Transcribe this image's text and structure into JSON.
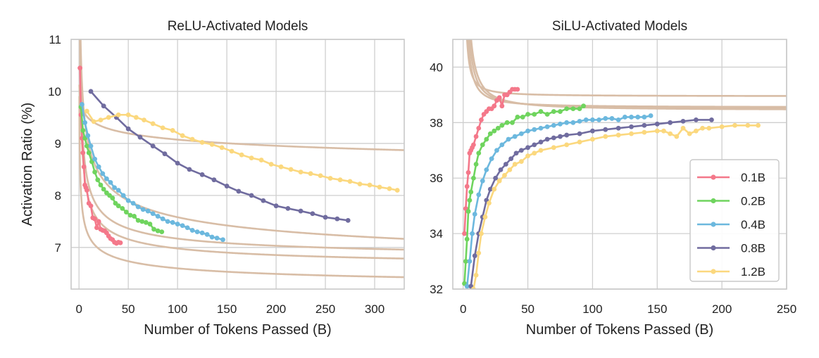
{
  "chart_data": [
    {
      "type": "line",
      "title": "ReLU-Activated Models",
      "xlabel": "Number of Tokens Passed (B)",
      "ylabel": "Activation Ratio (%)",
      "xlim": [
        -8,
        330
      ],
      "ylim": [
        6.2,
        11
      ],
      "xticks": [
        0,
        50,
        100,
        150,
        200,
        250,
        300
      ],
      "yticks": [
        7,
        8,
        9,
        10,
        11
      ],
      "grid": true,
      "series": [
        {
          "name": "0.1B",
          "x": [
            1,
            2,
            3,
            4,
            5,
            6,
            7,
            8,
            10,
            12,
            14,
            16,
            18,
            20,
            22,
            24,
            26,
            28,
            30,
            32,
            34,
            36,
            38,
            40,
            42
          ],
          "y": [
            10.45,
            9.55,
            9.1,
            8.82,
            8.55,
            8.2,
            8.15,
            8.1,
            7.85,
            7.8,
            7.57,
            7.55,
            7.38,
            7.5,
            7.35,
            7.33,
            7.32,
            7.28,
            7.22,
            7.17,
            7.15,
            7.1,
            7.08,
            7.1,
            7.09
          ]
        },
        {
          "name": "0.2B",
          "x": [
            2,
            4,
            6,
            8,
            10,
            13,
            16,
            19,
            22,
            25,
            28,
            31,
            34,
            37,
            40,
            44,
            48,
            52,
            56,
            60,
            64,
            68,
            72,
            76,
            80,
            84
          ],
          "y": [
            9.7,
            9.25,
            9.1,
            8.95,
            8.82,
            8.65,
            8.45,
            8.3,
            8.2,
            8.12,
            8.05,
            8.0,
            7.95,
            7.85,
            7.8,
            7.75,
            7.68,
            7.62,
            7.6,
            7.52,
            7.5,
            7.48,
            7.45,
            7.35,
            7.32,
            7.3
          ]
        },
        {
          "name": "0.4B",
          "x": [
            3,
            6,
            9,
            12,
            16,
            20,
            24,
            28,
            32,
            36,
            40,
            45,
            50,
            55,
            60,
            65,
            70,
            75,
            80,
            85,
            90,
            95,
            100,
            105,
            110,
            115,
            120,
            125,
            130,
            135,
            140,
            146
          ],
          "y": [
            9.75,
            9.4,
            9.15,
            8.95,
            8.7,
            8.55,
            8.42,
            8.32,
            8.25,
            8.15,
            8.1,
            8.0,
            7.9,
            7.85,
            7.78,
            7.73,
            7.7,
            7.65,
            7.6,
            7.55,
            7.5,
            7.48,
            7.45,
            7.42,
            7.38,
            7.33,
            7.3,
            7.28,
            7.25,
            7.2,
            7.18,
            7.15
          ]
        },
        {
          "name": "0.8B",
          "x": [
            12,
            25,
            38,
            50,
            62,
            75,
            87,
            100,
            112,
            125,
            137,
            150,
            162,
            175,
            187,
            200,
            212,
            225,
            237,
            250,
            262,
            273
          ],
          "y": [
            10.0,
            9.72,
            9.5,
            9.28,
            9.12,
            8.95,
            8.8,
            8.62,
            8.5,
            8.4,
            8.3,
            8.18,
            8.08,
            8.0,
            7.9,
            7.8,
            7.75,
            7.7,
            7.65,
            7.58,
            7.55,
            7.52
          ]
        },
        {
          "name": "1.2B",
          "x": [
            8,
            15,
            22,
            30,
            40,
            50,
            58,
            66,
            75,
            85,
            95,
            105,
            115,
            125,
            135,
            145,
            155,
            165,
            175,
            185,
            195,
            205,
            215,
            225,
            235,
            245,
            255,
            265,
            275,
            285,
            295,
            305,
            315,
            323
          ],
          "y": [
            9.62,
            9.42,
            9.45,
            9.5,
            9.55,
            9.55,
            9.5,
            9.45,
            9.38,
            9.3,
            9.25,
            9.15,
            9.08,
            9.02,
            8.98,
            8.92,
            8.85,
            8.78,
            8.72,
            8.68,
            8.6,
            8.55,
            8.5,
            8.45,
            8.42,
            8.38,
            8.33,
            8.3,
            8.27,
            8.22,
            8.2,
            8.16,
            8.13,
            8.1
          ]
        }
      ],
      "fits": [
        {
          "a": 6.1,
          "b": 2.5,
          "p": 0.35
        },
        {
          "a": 6.55,
          "b": 4.3,
          "p": 0.5
        },
        {
          "a": 6.7,
          "b": 4.7,
          "p": 0.5
        },
        {
          "a": 6.2,
          "b": 5.5,
          "p": 0.3
        },
        {
          "a": 0.5,
          "b": 9.4,
          "p": 0.02
        }
      ]
    },
    {
      "type": "line",
      "title": "SiLU-Activated Models",
      "xlabel": "Number of Tokens Passed (B)",
      "ylabel": "",
      "xlim": [
        -8,
        250
      ],
      "ylim": [
        32,
        41
      ],
      "xticks": [
        0,
        50,
        100,
        150,
        200,
        250
      ],
      "yticks": [
        32,
        34,
        36,
        38,
        40
      ],
      "grid": true,
      "legend_position": "lower right",
      "series": [
        {
          "name": "0.1B",
          "x": [
            1,
            2,
            3,
            4,
            5,
            6,
            7,
            8,
            10,
            12,
            14,
            16,
            18,
            20,
            22,
            24,
            26,
            28,
            30,
            32,
            34,
            36,
            38,
            40,
            42
          ],
          "y": [
            34.0,
            34.9,
            35.7,
            36.2,
            36.9,
            37.0,
            37.1,
            37.2,
            37.5,
            37.8,
            38.1,
            38.3,
            38.4,
            38.5,
            38.5,
            38.6,
            38.8,
            38.9,
            38.6,
            39.0,
            39.0,
            39.1,
            39.2,
            39.2,
            39.2
          ]
        },
        {
          "name": "0.2B",
          "x": [
            1,
            2,
            3,
            4,
            5,
            6,
            8,
            10,
            12,
            15,
            18,
            21,
            24,
            27,
            30,
            34,
            38,
            42,
            46,
            50,
            55,
            60,
            65,
            70,
            75,
            80,
            85,
            90,
            93
          ],
          "y": [
            32.2,
            33.0,
            33.8,
            34.8,
            35.2,
            35.5,
            36.0,
            36.5,
            36.9,
            37.2,
            37.4,
            37.6,
            37.7,
            37.8,
            37.9,
            38.0,
            38.0,
            38.2,
            38.2,
            38.3,
            38.3,
            38.4,
            38.3,
            38.4,
            38.4,
            38.5,
            38.5,
            38.5,
            38.6
          ]
        },
        {
          "name": "0.4B",
          "x": [
            3,
            5,
            7,
            9,
            12,
            15,
            18,
            22,
            26,
            30,
            35,
            40,
            45,
            50,
            55,
            60,
            65,
            70,
            75,
            80,
            85,
            90,
            95,
            100,
            105,
            110,
            115,
            120,
            125,
            130,
            135,
            140,
            145
          ],
          "y": [
            32.1,
            33.0,
            34.0,
            34.7,
            35.4,
            35.9,
            36.3,
            36.7,
            37.0,
            37.2,
            37.4,
            37.5,
            37.6,
            37.7,
            37.75,
            37.8,
            37.85,
            37.9,
            37.95,
            38.0,
            38.0,
            38.05,
            38.1,
            38.1,
            38.1,
            38.15,
            38.15,
            38.1,
            38.2,
            38.2,
            38.2,
            38.2,
            38.25
          ]
        },
        {
          "name": "0.8B",
          "x": [
            6,
            9,
            12,
            15,
            18,
            21,
            25,
            29,
            33,
            37,
            41,
            45,
            50,
            55,
            60,
            65,
            70,
            75,
            80,
            90,
            100,
            110,
            120,
            130,
            140,
            150,
            160,
            170,
            180,
            192
          ],
          "y": [
            32.1,
            33.2,
            34.0,
            34.6,
            35.2,
            35.6,
            36.0,
            36.3,
            36.5,
            36.7,
            36.9,
            37.0,
            37.1,
            37.2,
            37.3,
            37.4,
            37.45,
            37.5,
            37.55,
            37.6,
            37.7,
            37.75,
            37.8,
            37.85,
            37.9,
            37.95,
            38.0,
            38.05,
            38.1,
            38.1
          ]
        },
        {
          "name": "1.2B",
          "x": [
            8,
            10,
            12,
            14,
            17,
            20,
            24,
            28,
            32,
            36,
            40,
            45,
            50,
            55,
            60,
            70,
            80,
            90,
            100,
            110,
            120,
            130,
            140,
            150,
            155,
            160,
            165,
            170,
            175,
            180,
            185,
            190,
            200,
            210,
            220,
            228
          ],
          "y": [
            32.0,
            32.5,
            33.3,
            34.0,
            34.6,
            35.1,
            35.6,
            35.9,
            36.1,
            36.3,
            36.5,
            36.6,
            36.8,
            36.9,
            37.0,
            37.1,
            37.2,
            37.3,
            37.4,
            37.5,
            37.55,
            37.6,
            37.65,
            37.7,
            37.7,
            37.6,
            37.5,
            37.8,
            37.6,
            37.7,
            37.8,
            37.8,
            37.85,
            37.9,
            37.9,
            37.9
          ]
        }
      ],
      "fits": [
        {
          "a": 41.6,
          "b": 4.8,
          "p": 0.3
        },
        {
          "a": 38.95,
          "b": 7.7,
          "p": 1.2
        },
        {
          "a": 38.55,
          "b": 12.8,
          "p": 1.2
        },
        {
          "a": 38.5,
          "b": 17.6,
          "p": 1.2
        },
        {
          "a": 38.45,
          "b": 22.6,
          "p": 1.2
        }
      ]
    }
  ],
  "colors": {
    "0.1B": "#f4788a",
    "0.2B": "#6fd45e",
    "0.4B": "#6cb8de",
    "0.8B": "#706c9f",
    "1.2B": "#fbd87e",
    "fit": "#d8bda6",
    "grid": "#cfcfcf",
    "frame": "#c8c8c8"
  },
  "legend": {
    "entries": [
      "0.1B",
      "0.2B",
      "0.4B",
      "0.8B",
      "1.2B"
    ]
  }
}
